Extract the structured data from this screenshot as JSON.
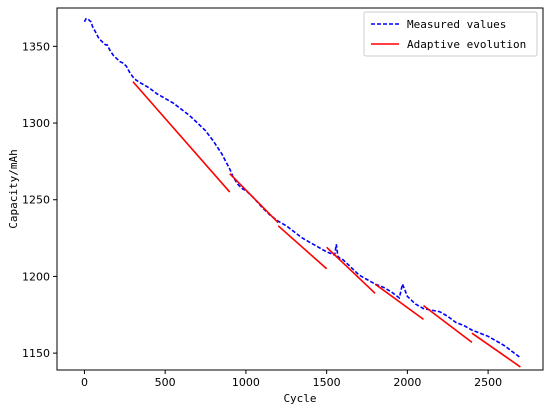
{
  "chart_data": {
    "type": "line",
    "title": "",
    "xlabel": "Cycle",
    "ylabel": "Capacity/mAh",
    "xlim": [
      -170,
      2840
    ],
    "ylim": [
      1139,
      1375
    ],
    "xticks": [
      0,
      500,
      1000,
      1500,
      2000,
      2500
    ],
    "yticks": [
      1150,
      1200,
      1250,
      1300,
      1350
    ],
    "grid": false,
    "legend_position": "top-right",
    "series": [
      {
        "name": "Measured values",
        "style": "dashed",
        "color": "#0000ff",
        "x": [
          0,
          10,
          20,
          30,
          40,
          50,
          60,
          70,
          80,
          90,
          100,
          110,
          120,
          130,
          140,
          150,
          160,
          180,
          200,
          220,
          240,
          260,
          280,
          300,
          320,
          350,
          400,
          450,
          500,
          550,
          600,
          650,
          700,
          750,
          800,
          850,
          880,
          900,
          920,
          950,
          980,
          1000,
          1050,
          1100,
          1150,
          1200,
          1250,
          1300,
          1350,
          1400,
          1450,
          1500,
          1550,
          1560,
          1570,
          1580,
          1600,
          1650,
          1700,
          1750,
          1800,
          1850,
          1900,
          1950,
          1970,
          2000,
          2050,
          2100,
          2150,
          2200,
          2250,
          2300,
          2350,
          2400,
          2450,
          2500,
          2550,
          2600,
          2650,
          2700
        ],
        "y": [
          1366,
          1368,
          1368,
          1367,
          1366,
          1363,
          1361,
          1359,
          1357,
          1355,
          1354,
          1353,
          1352,
          1351,
          1351,
          1349,
          1347,
          1344,
          1342,
          1340,
          1339,
          1337,
          1333,
          1330,
          1328,
          1326,
          1323,
          1319,
          1316,
          1313,
          1309,
          1305,
          1300,
          1295,
          1288,
          1280,
          1274,
          1270,
          1265,
          1260,
          1257,
          1256,
          1251,
          1245,
          1240,
          1236,
          1233,
          1229,
          1225,
          1222,
          1219,
          1216,
          1214,
          1221,
          1213,
          1212,
          1211,
          1206,
          1201,
          1198,
          1195,
          1193,
          1190,
          1186,
          1195,
          1187,
          1182,
          1179,
          1178,
          1177,
          1174,
          1170,
          1168,
          1165,
          1163,
          1161,
          1158,
          1155,
          1151,
          1147
        ]
      },
      {
        "name": "Adaptive evolution",
        "style": "solid",
        "color": "#ff0000",
        "segments": [
          {
            "x": [
              300,
              900
            ],
            "y": [
              1327,
              1255
            ]
          },
          {
            "x": [
              900,
              1200
            ],
            "y": [
              1267,
              1235
            ]
          },
          {
            "x": [
              1200,
              1500
            ],
            "y": [
              1233,
              1205
            ]
          },
          {
            "x": [
              1500,
              1800
            ],
            "y": [
              1219,
              1189
            ]
          },
          {
            "x": [
              1800,
              2100
            ],
            "y": [
              1195,
              1172
            ]
          },
          {
            "x": [
              2100,
              2400
            ],
            "y": [
              1181,
              1157
            ]
          },
          {
            "x": [
              2400,
              2700
            ],
            "y": [
              1163,
              1141
            ]
          }
        ]
      }
    ]
  }
}
